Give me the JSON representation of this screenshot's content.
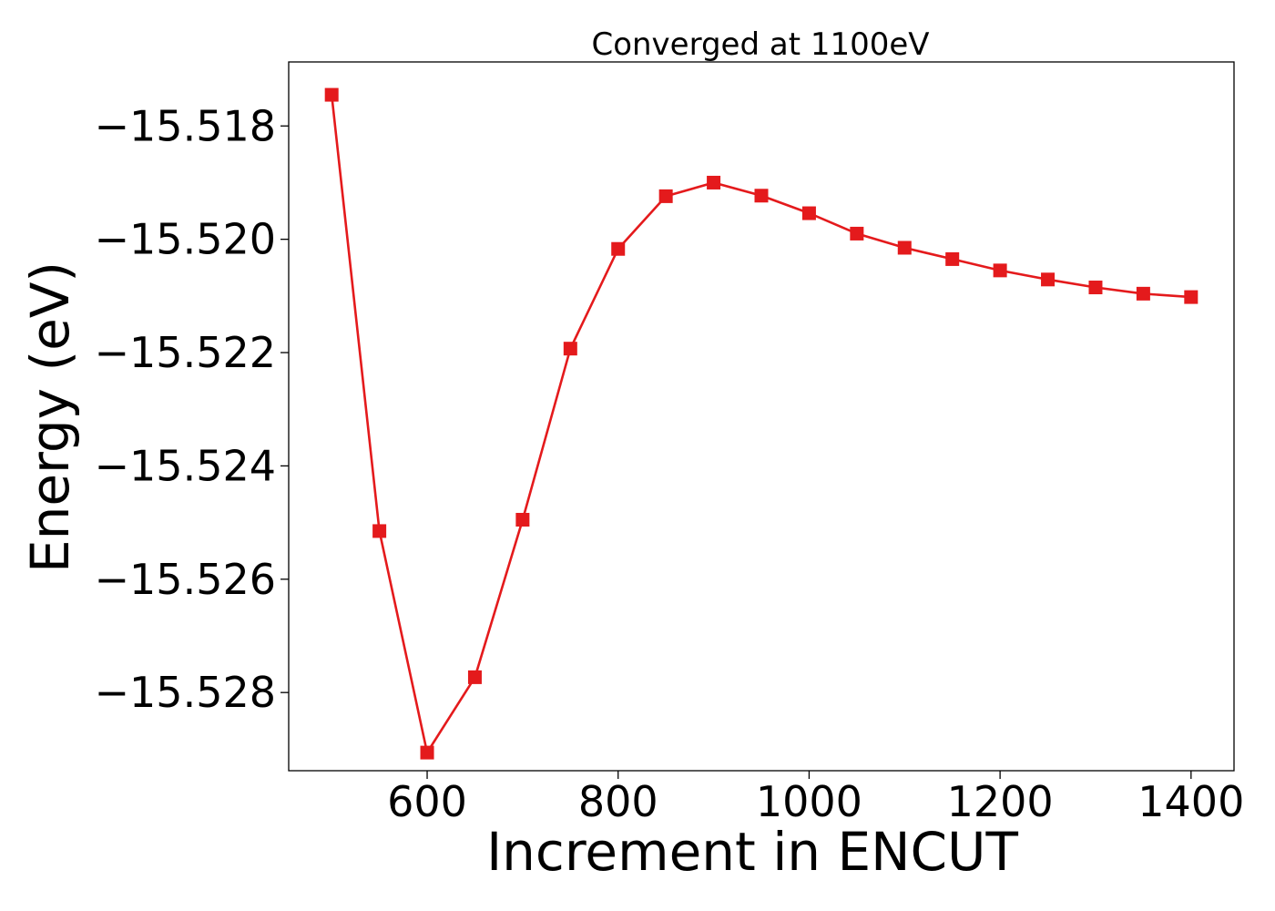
{
  "chart_data": {
    "type": "line",
    "title": "Converged at 1100eV",
    "xlabel": "Increment in ENCUT",
    "ylabel": "Energy (eV)",
    "x_ticks": [
      600,
      800,
      1000,
      1200,
      1400
    ],
    "x_tick_labels": [
      "600",
      "800",
      "1000",
      "1200",
      "1400"
    ],
    "y_ticks": [
      -15.518,
      -15.52,
      -15.522,
      -15.524,
      -15.526,
      -15.528
    ],
    "y_tick_labels": [
      "−15.518",
      "−15.520",
      "−15.522",
      "−15.524",
      "−15.526",
      "−15.528"
    ],
    "xlim": [
      455,
      1445
    ],
    "ylim": [
      -15.52938,
      -15.51687
    ],
    "grid": false,
    "marker": "square",
    "series": [
      {
        "color": "#e41a1c",
        "x": [
          500,
          550,
          600,
          650,
          700,
          750,
          800,
          850,
          900,
          950,
          1000,
          1050,
          1100,
          1150,
          1200,
          1250,
          1300,
          1350,
          1400
        ],
        "y": [
          -15.51745,
          -15.52515,
          -15.52906,
          -15.52773,
          -15.52495,
          -15.52193,
          -15.52017,
          -15.51924,
          -15.519,
          -15.51923,
          -15.51954,
          -15.5199,
          -15.52015,
          -15.52035,
          -15.52055,
          -15.52071,
          -15.52085,
          -15.52096,
          -15.52102
        ]
      }
    ]
  }
}
